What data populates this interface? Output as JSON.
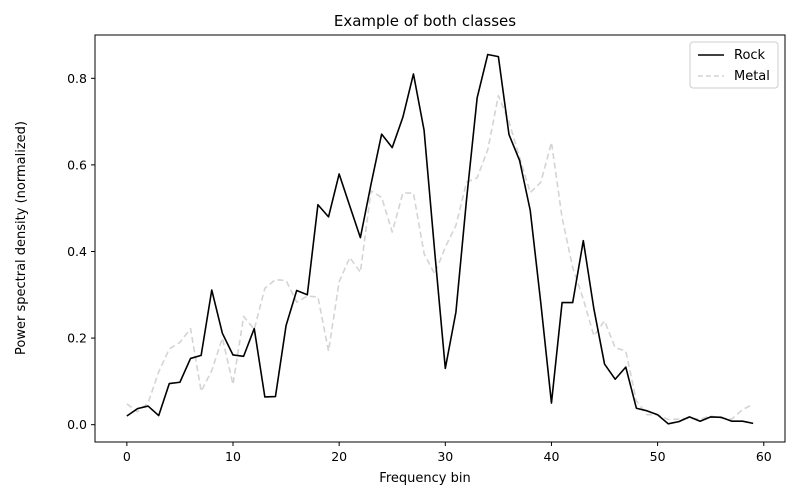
{
  "chart_data": {
    "type": "line",
    "title": "Example of both classes",
    "xlabel": "Frequency bin",
    "ylabel": "Power spectral density (normalized)",
    "xlim": [
      -3,
      62
    ],
    "ylim": [
      -0.04,
      0.9
    ],
    "xticks": [
      0,
      10,
      20,
      30,
      40,
      50,
      60
    ],
    "xtick_labels": [
      "0",
      "10",
      "20",
      "30",
      "40",
      "50",
      "60"
    ],
    "yticks": [
      0.0,
      0.2,
      0.4,
      0.6,
      0.8
    ],
    "ytick_labels": [
      "0.0",
      "0.2",
      "0.4",
      "0.6",
      "0.8"
    ],
    "legend_position": "top-right",
    "grid": false,
    "x": [
      0,
      1,
      2,
      3,
      4,
      5,
      6,
      7,
      8,
      9,
      10,
      11,
      12,
      13,
      14,
      15,
      16,
      17,
      18,
      19,
      20,
      21,
      22,
      23,
      24,
      25,
      26,
      27,
      28,
      29,
      30,
      31,
      32,
      33,
      34,
      35,
      36,
      37,
      38,
      39,
      40,
      41,
      42,
      43,
      44,
      45,
      46,
      47,
      48,
      49,
      50,
      51,
      52,
      53,
      54,
      55,
      56,
      57,
      58,
      59
    ],
    "series": [
      {
        "name": "Rock",
        "color": "#000000",
        "dash": "solid",
        "values": [
          0.02,
          0.037,
          0.043,
          0.021,
          0.095,
          0.098,
          0.153,
          0.16,
          0.311,
          0.211,
          0.161,
          0.158,
          0.222,
          0.064,
          0.065,
          0.229,
          0.31,
          0.3,
          0.508,
          0.48,
          0.579,
          0.505,
          0.432,
          0.555,
          0.671,
          0.64,
          0.71,
          0.81,
          0.68,
          0.4,
          0.13,
          0.26,
          0.52,
          0.755,
          0.855,
          0.85,
          0.67,
          0.61,
          0.495,
          0.28,
          0.05,
          0.282,
          0.282,
          0.425,
          0.267,
          0.14,
          0.105,
          0.133,
          0.038,
          0.032,
          0.023,
          0.002,
          0.007,
          0.018,
          0.008,
          0.018,
          0.017,
          0.008,
          0.008,
          0.003
        ]
      },
      {
        "name": "Metal",
        "color": "#d4d4d4",
        "dash": "dashed",
        "values": [
          0.048,
          0.03,
          0.05,
          0.122,
          0.175,
          0.19,
          0.222,
          0.077,
          0.125,
          0.2,
          0.093,
          0.25,
          0.22,
          0.315,
          0.335,
          0.333,
          0.283,
          0.297,
          0.295,
          0.17,
          0.33,
          0.386,
          0.352,
          0.54,
          0.525,
          0.445,
          0.535,
          0.535,
          0.395,
          0.348,
          0.41,
          0.46,
          0.56,
          0.57,
          0.635,
          0.76,
          0.7,
          0.617,
          0.536,
          0.56,
          0.652,
          0.478,
          0.363,
          0.29,
          0.205,
          0.24,
          0.178,
          0.17,
          0.055,
          0.023,
          0.023,
          0.012,
          0.013,
          0.015,
          0.013,
          0.02,
          0.015,
          0.013,
          0.035,
          0.047
        ]
      }
    ]
  }
}
